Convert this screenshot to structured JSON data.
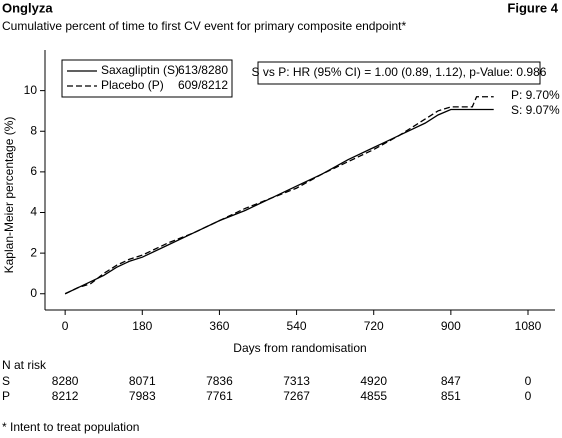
{
  "header": {
    "title": "Onglyza",
    "figure": "Figure 4"
  },
  "chart_data": {
    "type": "line",
    "title": "Cumulative percent of time to first CV event for primary composite endpoint*",
    "x_label": "Days from randomisation",
    "y_label": "Kaplan-Meier percentage (%)",
    "x": [
      0,
      30,
      60,
      90,
      120,
      150,
      180,
      240,
      300,
      360,
      420,
      480,
      540,
      600,
      660,
      720,
      780,
      840,
      870,
      900,
      950,
      960,
      1000
    ],
    "series": [
      {
        "name": "Saxagliptin (S)",
        "events": "613/8280",
        "color": "#000000",
        "line_style": "solid",
        "values": [
          0,
          0.3,
          0.6,
          0.9,
          1.3,
          1.6,
          1.8,
          2.4,
          3.0,
          3.6,
          4.1,
          4.7,
          5.3,
          5.9,
          6.6,
          7.2,
          7.8,
          8.4,
          8.8,
          9.07,
          9.07,
          9.07,
          9.07
        ]
      },
      {
        "name": "Placebo (P)",
        "events": "609/8212",
        "color": "#000000",
        "line_style": "dashed",
        "values": [
          0,
          0.3,
          0.5,
          1.0,
          1.4,
          1.7,
          1.9,
          2.5,
          3.0,
          3.6,
          4.2,
          4.7,
          5.2,
          5.9,
          6.5,
          7.1,
          7.8,
          8.6,
          9.0,
          9.2,
          9.2,
          9.7,
          9.7
        ]
      }
    ],
    "end_labels": [
      "P: 9.70%",
      "S: 9.07%"
    ],
    "annotation": "S vs P: HR (95% CI) = 1.00 (0.89, 1.12), p-Value: 0.986",
    "xlim": [
      -47,
      1143
    ],
    "xticks": [
      0,
      180,
      360,
      540,
      720,
      900,
      1080
    ],
    "ylim": [
      -0.8,
      12
    ],
    "yticks": [
      0,
      2,
      4,
      6,
      8,
      10
    ],
    "grid": false
  },
  "at_risk": {
    "title": "N at risk",
    "rows": [
      {
        "label": "S",
        "values": [
          "8280",
          "8071",
          "7836",
          "7313",
          "4920",
          "847",
          "0"
        ]
      },
      {
        "label": "P",
        "values": [
          "8212",
          "7983",
          "7761",
          "7267",
          "4855",
          "851",
          "0"
        ]
      }
    ]
  },
  "footnote": "* Intent to treat population"
}
